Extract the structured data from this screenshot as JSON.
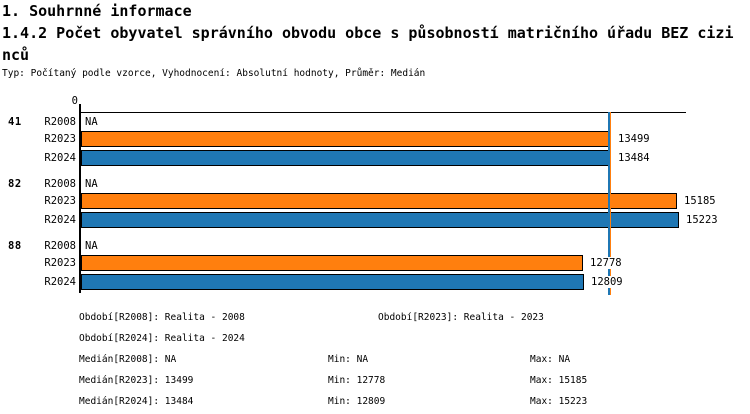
{
  "header": {
    "title": "1. Souhrnné informace",
    "subtitle": "1.4.2 Počet obyvatel správního obvodu obce s působností matričního úřadu BEZ cizinců",
    "type_line": "Typ: Počítaný podle vzorce, Vyhodnocení: Absolutní hodnoty, Průměr: Medián"
  },
  "chart_data": {
    "type": "bar",
    "orientation": "horizontal",
    "origin_label": "0",
    "na_text": "NA",
    "categories": [
      "41",
      "82",
      "88"
    ],
    "series": [
      {
        "name": "R2008",
        "color": null,
        "values": [
          null,
          null,
          null
        ]
      },
      {
        "name": "R2023",
        "color": "#ff7f0e",
        "values": [
          13499,
          15185,
          12778
        ]
      },
      {
        "name": "R2024",
        "color": "#1f77b4",
        "values": [
          13484,
          15223,
          12809
        ]
      }
    ],
    "xlim": [
      0,
      15430
    ],
    "grid": false,
    "median_lines": [
      {
        "series": "R2023",
        "value": 13499,
        "color": "#ff7f0e"
      },
      {
        "series": "R2024",
        "value": 13484,
        "color": "#1f77b4"
      }
    ],
    "colors": {
      "bar_r2023": "#ff7f0e",
      "bar_r2024": "#1f77b4",
      "axis": "#000000"
    }
  },
  "legend": {
    "rows": [
      [
        "Období[R2008]: Realita - 2008",
        "Období[R2023]: Realita - 2023"
      ],
      [
        "Období[R2024]: Realita - 2024"
      ],
      [
        "Medián[R2008]: NA",
        "Min: NA",
        "Max: NA"
      ],
      [
        "Medián[R2023]: 13499",
        "Min: 12778",
        "Max: 15185"
      ],
      [
        "Medián[R2024]: 13484",
        "Min: 12809",
        "Max: 15223"
      ]
    ]
  }
}
